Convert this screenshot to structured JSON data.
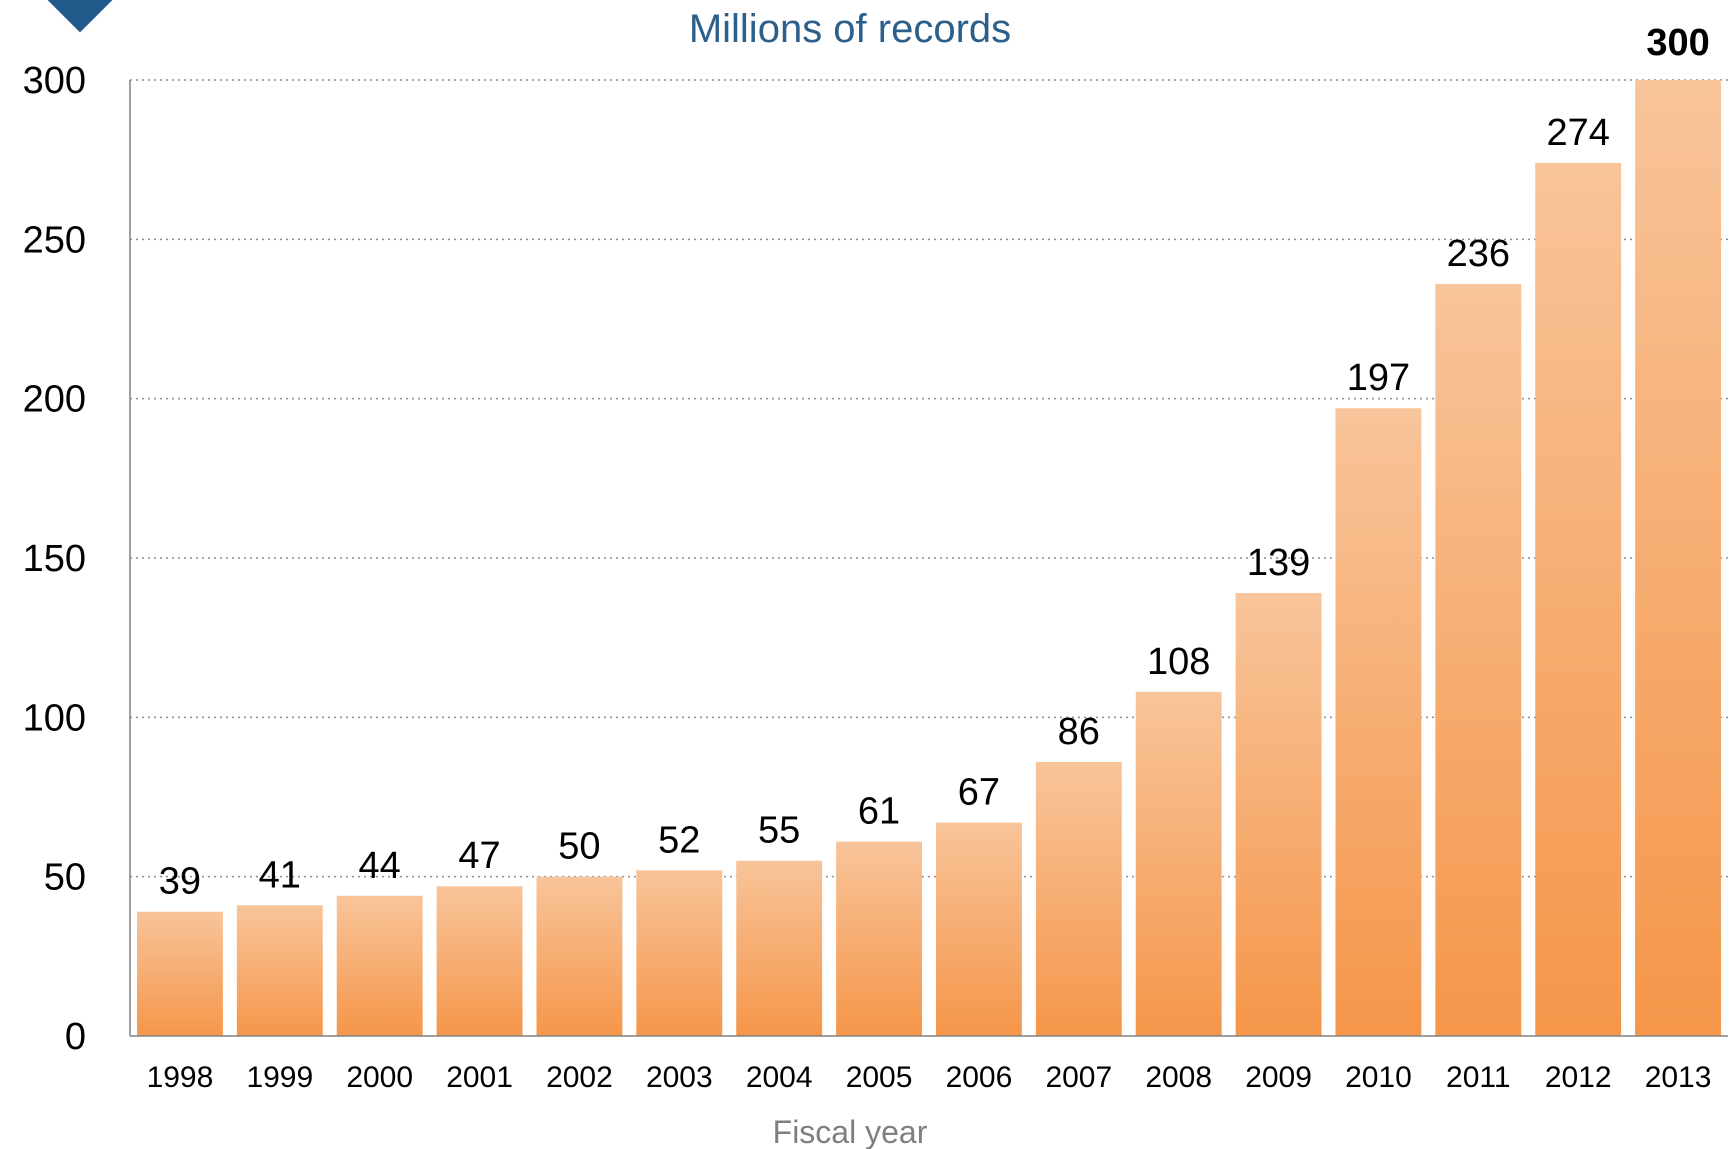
{
  "chart_data": {
    "type": "bar",
    "title": "Millions of records",
    "xlabel": "Fiscal year",
    "ylabel": "",
    "ylim": [
      0,
      300
    ],
    "yticks": [
      0,
      50,
      100,
      150,
      200,
      250,
      300
    ],
    "grid": true,
    "categories": [
      "1998",
      "1999",
      "2000",
      "2001",
      "2002",
      "2003",
      "2004",
      "2005",
      "2006",
      "2007",
      "2008",
      "2009",
      "2010",
      "2011",
      "2012",
      "2013"
    ],
    "values": [
      39,
      41,
      44,
      47,
      50,
      52,
      55,
      61,
      67,
      86,
      108,
      139,
      197,
      236,
      274,
      300
    ],
    "data_labels": [
      "39",
      "41",
      "44",
      "47",
      "50",
      "52",
      "55",
      "61",
      "67",
      "86",
      "108",
      "139",
      "197",
      "236",
      "274",
      "300"
    ],
    "highlight_last_label": true
  },
  "colors": {
    "bar_top": "#f8c49a",
    "bar_bottom": "#f5964a",
    "title": "#2c5f8a",
    "axis_text": "#000000",
    "xlabel_text": "#7f7f7f",
    "grid": "#8c8c8c",
    "corner_marker": "#1f5a8a"
  }
}
